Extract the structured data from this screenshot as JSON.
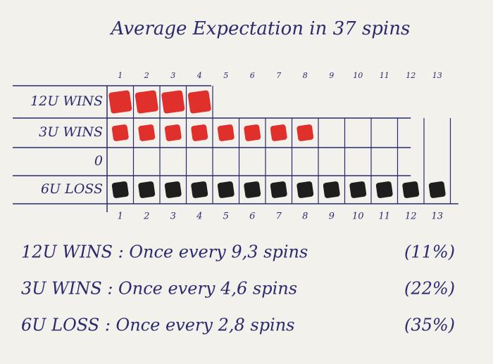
{
  "title": "Average Expectation in 37 spins",
  "grid": {
    "top_columns": [
      "1",
      "2",
      "3",
      "4",
      "5",
      "6",
      "7",
      "8",
      "9",
      "10",
      "11",
      "12",
      "13"
    ],
    "bottom_columns": [
      "1",
      "2",
      "3",
      "4",
      "5",
      "6",
      "7",
      "8",
      "9",
      "10",
      "11",
      "12",
      "13"
    ],
    "rows": [
      {
        "label": "12U WINS",
        "filled": 4,
        "color": "#e0302c"
      },
      {
        "label": "3U WINS",
        "filled": 8,
        "color": "#e0302c"
      },
      {
        "label": "0",
        "filled": 0,
        "color": "#e0302c"
      },
      {
        "label": "6U LOSS",
        "filled": 13,
        "color": "#1e1e1e"
      }
    ]
  },
  "notes": [
    {
      "text": "12U WINS : Once every 9,3 spins",
      "percent": "(11%)"
    },
    {
      "text": "3U WINS : Once every 4,6 spins",
      "percent": "(22%)"
    },
    {
      "text": "6U LOSS : Once every 2,8 spins",
      "percent": "(35%)"
    }
  ]
}
